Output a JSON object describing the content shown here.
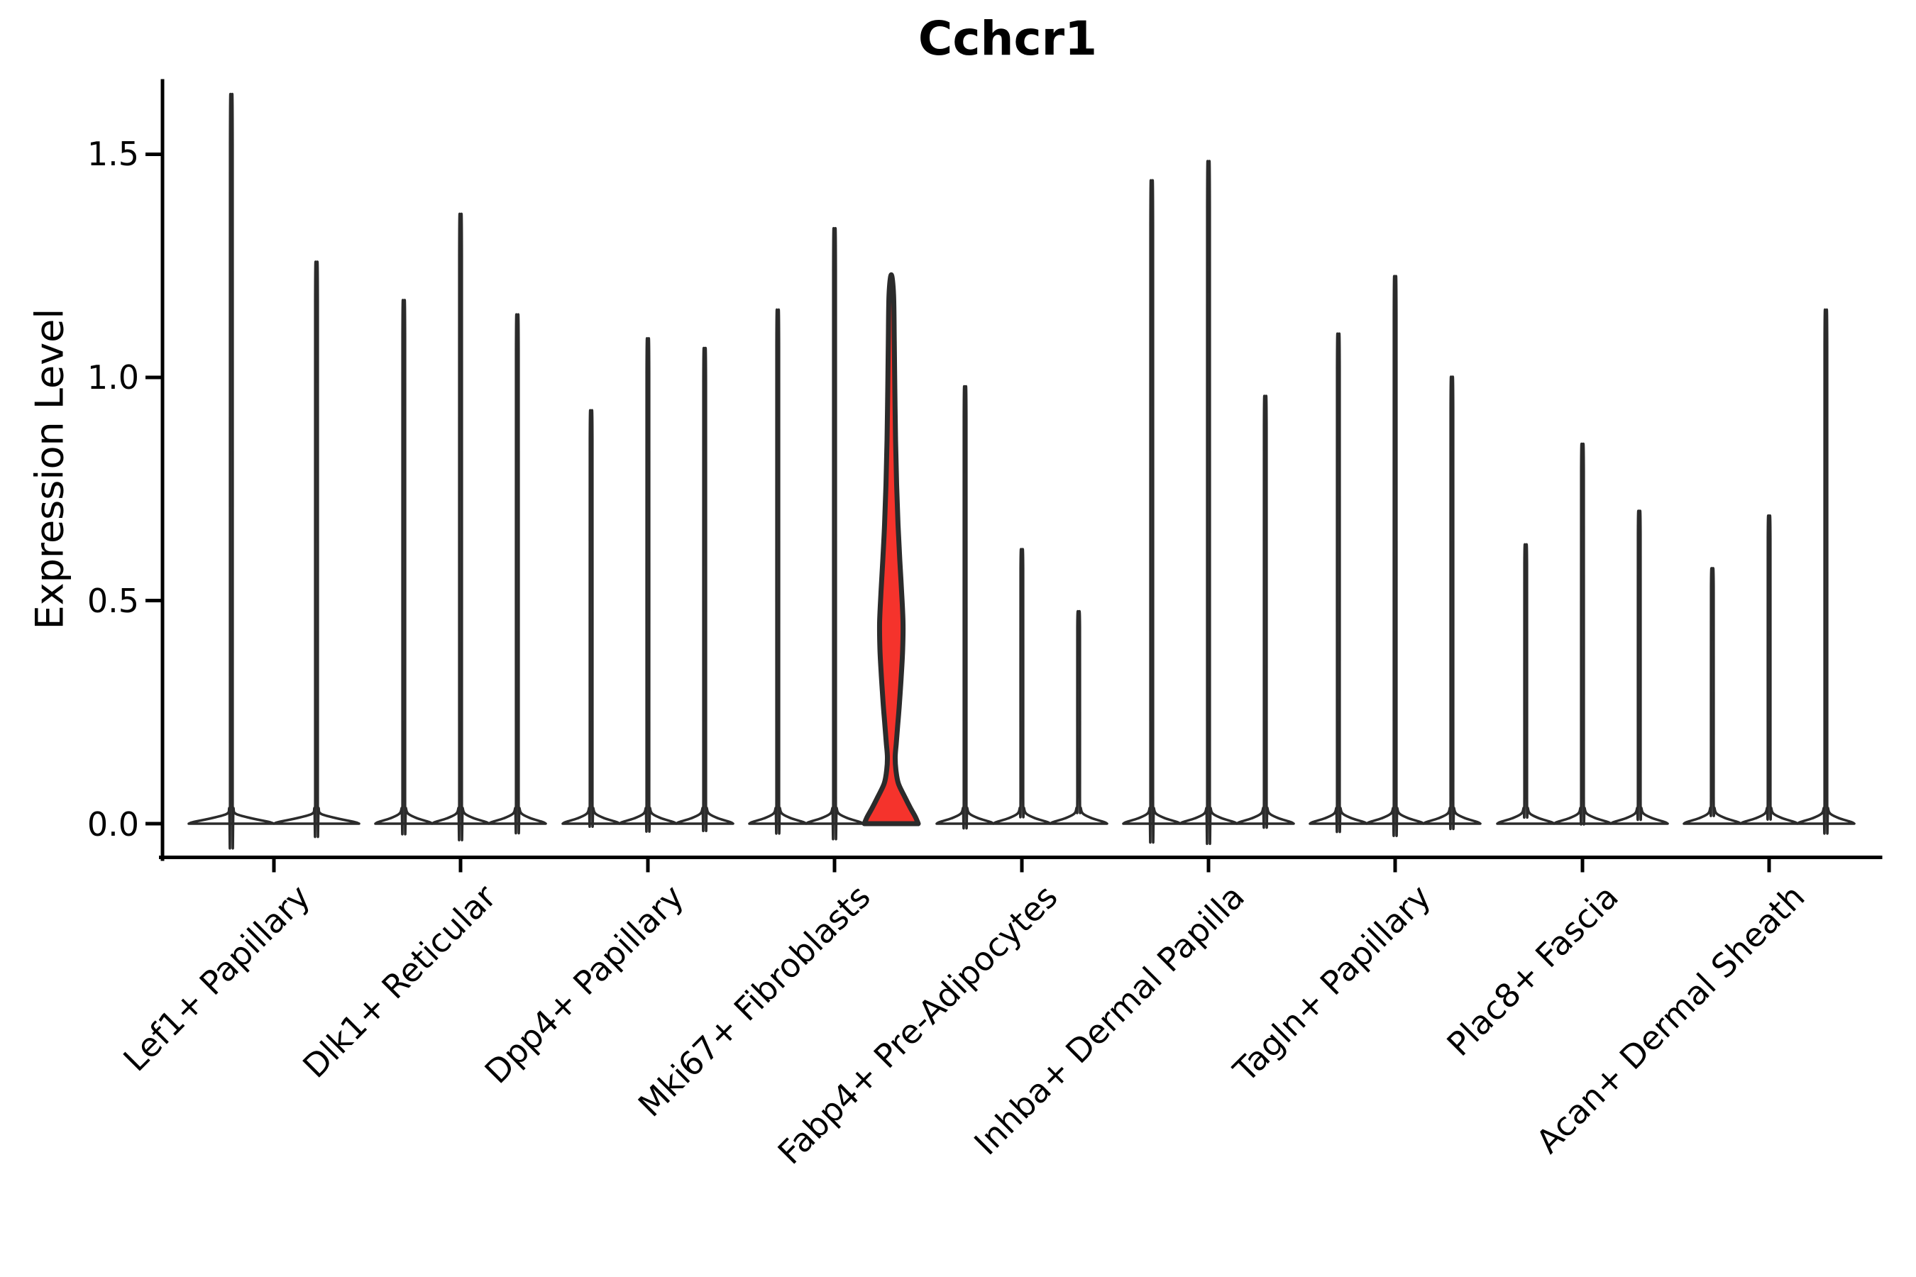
{
  "title": "Cchcr1",
  "chart_data": {
    "type": "violin",
    "title": "Cchcr1",
    "xlabel": "",
    "ylabel": "Expression Level",
    "yticks": [
      0.0,
      0.5,
      1.0,
      1.5
    ],
    "ytick_labels": [
      "0.0",
      "0.5",
      "1.0",
      "1.5"
    ],
    "ylim": [
      -0.08,
      1.66
    ],
    "grid": false,
    "legend": false,
    "outline_color": "#2b2b2b",
    "axis_color": "#000000",
    "highlight_color": "#f5332c",
    "violin_fill": "#ffffff",
    "groups": [
      {
        "label": "Lef1+ Papillary",
        "violin_maxima": [
          1.54,
          1.19
        ]
      },
      {
        "label": "Dlk1+ Reticular",
        "violin_maxima": [
          1.11,
          1.29,
          1.08
        ]
      },
      {
        "label": "Dpp4+ Papillary",
        "violin_maxima": [
          0.88,
          1.03,
          1.01
        ]
      },
      {
        "label": "Mki67+ Fibroblasts",
        "violin_maxima": [
          1.09,
          1.26,
          1.23
        ],
        "highlighted_violin": 2
      },
      {
        "label": "Fabp4+ Pre-Adipocytes",
        "violin_maxima": [
          0.93,
          0.59,
          0.46
        ]
      },
      {
        "label": "Inhba+ Dermal Papilla",
        "violin_maxima": [
          1.36,
          1.4,
          0.91
        ]
      },
      {
        "label": "Tagln+ Papillary",
        "violin_maxima": [
          1.04,
          1.16,
          0.95
        ]
      },
      {
        "label": "Plac8+ Fascia",
        "violin_maxima": [
          0.6,
          0.81,
          0.67
        ]
      },
      {
        "label": "Acan+ Dermal Sheath",
        "violin_maxima": [
          0.55,
          0.66,
          1.09
        ]
      }
    ],
    "highlight": {
      "group": "Mki67+ Fibroblasts",
      "violin_index": 2,
      "max_expression": 1.23,
      "bulge_peak_expression": 0.45,
      "pinch_expression": 0.15
    }
  }
}
